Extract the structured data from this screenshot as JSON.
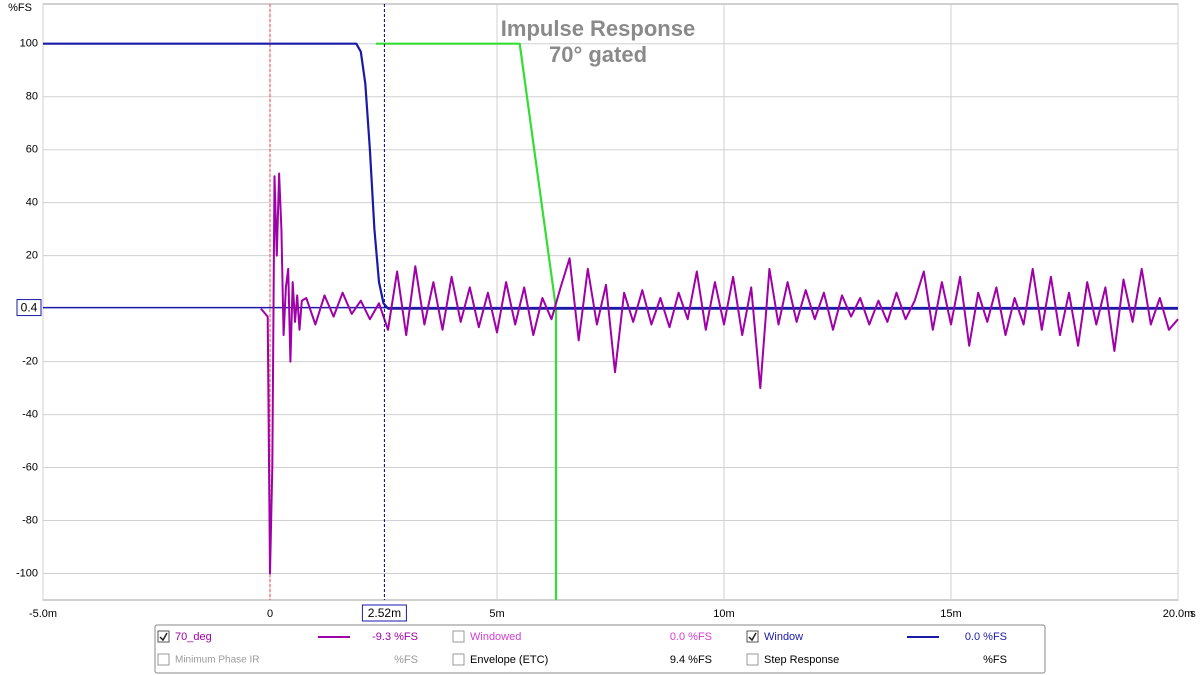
{
  "chart_data": {
    "type": "line",
    "title": "Impulse Response",
    "subtitle": "70° gated",
    "ylabel": "%FS",
    "xlabel": "s",
    "xlim": [
      -5,
      20
    ],
    "ylim": [
      -110,
      115
    ],
    "xticks": [
      {
        "value": -5,
        "label": "-5.0m"
      },
      0,
      {
        "value": 5,
        "label": "5m"
      },
      {
        "value": 10,
        "label": "10m"
      },
      {
        "value": 15,
        "label": "15m"
      },
      {
        "value": 20,
        "label": "20.0m"
      }
    ],
    "yticks": [
      -100,
      -80,
      -60,
      -40,
      -20,
      20,
      40,
      60,
      80,
      100
    ],
    "grid": true,
    "reference_x": 0,
    "x_cursor": {
      "value": 2.52,
      "label": "2.52m"
    },
    "y_cursor": {
      "value": 0.4,
      "label": "0.4"
    },
    "series": [
      {
        "name": "70_deg",
        "color": "#a000a8",
        "checked": true,
        "readout": "-9.3 %FS",
        "x": [
          -0.2,
          -0.05,
          0,
          0.05,
          0.1,
          0.15,
          0.2,
          0.25,
          0.3,
          0.35,
          0.4,
          0.45,
          0.5,
          0.55,
          0.6,
          0.65,
          0.7,
          0.8,
          1.0,
          1.2,
          1.4,
          1.6,
          1.8,
          2.0,
          2.2,
          2.4,
          2.6,
          2.8,
          3.0,
          3.2,
          3.4,
          3.6,
          3.8,
          4.0,
          4.2,
          4.4,
          4.6,
          4.8,
          5.0,
          5.2,
          5.4,
          5.6,
          5.8,
          6.0,
          6.2,
          6.4,
          6.6,
          6.8,
          7.0,
          7.2,
          7.4,
          7.6,
          7.8,
          8.0,
          8.2,
          8.4,
          8.6,
          8.8,
          9.0,
          9.2,
          9.4,
          9.6,
          9.8,
          10.0,
          10.2,
          10.4,
          10.6,
          10.8,
          11.0,
          11.2,
          11.4,
          11.6,
          11.8,
          12.0,
          12.2,
          12.4,
          12.6,
          12.8,
          13.0,
          13.2,
          13.4,
          13.6,
          13.8,
          14.0,
          14.2,
          14.4,
          14.6,
          14.8,
          15.0,
          15.2,
          15.4,
          15.6,
          15.8,
          16.0,
          16.2,
          16.4,
          16.6,
          16.8,
          17.0,
          17.2,
          17.4,
          17.6,
          17.8,
          18.0,
          18.2,
          18.4,
          18.6,
          18.8,
          19.0,
          19.2,
          19.4,
          19.6,
          19.8,
          20.0
        ],
        "values": [
          0,
          -3,
          -100,
          -60,
          50,
          20,
          51,
          30,
          -10,
          8,
          15,
          -20,
          10,
          -5,
          5,
          -8,
          3,
          4,
          -6,
          5,
          -3,
          6,
          -2,
          3,
          -4,
          2,
          -8,
          14,
          -10,
          16,
          -6,
          10,
          -8,
          12,
          -5,
          8,
          -7,
          6,
          -9,
          10,
          -6,
          8,
          -10,
          4,
          -4,
          8,
          19,
          -12,
          15,
          -6,
          9,
          -24,
          6,
          -5,
          7,
          -6,
          4,
          -7,
          6,
          -4,
          14,
          -8,
          10,
          -6,
          12,
          -10,
          8,
          -30,
          15,
          -6,
          10,
          -5,
          7,
          -4,
          6,
          -8,
          5,
          -3,
          4,
          -6,
          3,
          -5,
          6,
          -4,
          3,
          14,
          -8,
          10,
          -6,
          12,
          -14,
          6,
          -5,
          8,
          -10,
          4,
          -6,
          15,
          -8,
          12,
          -10,
          6,
          -14,
          10,
          -6,
          8,
          -16,
          11,
          -5,
          15,
          -6,
          4,
          -8,
          -4
        ]
      },
      {
        "name": "Window",
        "color": "#1a1aa8",
        "checked": true,
        "readout": "0.0 %FS",
        "x": [
          -5,
          1.9,
          2.0,
          2.1,
          2.2,
          2.3,
          2.4,
          2.5,
          2.6,
          20
        ],
        "values": [
          100,
          100,
          97,
          85,
          60,
          30,
          10,
          2,
          0,
          0
        ]
      },
      {
        "color": "#33dd33",
        "x": [
          2.33,
          5.5,
          6.3,
          6.3
        ],
        "values": [
          100,
          100,
          0,
          -110
        ]
      }
    ],
    "legend_others": [
      {
        "label": "Windowed",
        "color": "#d040d0",
        "checked": false,
        "readout": "0.0 %FS"
      },
      {
        "label": "Minimum Phase IR",
        "color": "#9a9a9a",
        "checked": false,
        "readout": "%FS"
      },
      {
        "label": "Envelope (ETC)",
        "color": "#000000",
        "checked": false,
        "readout": "9.4 %FS"
      },
      {
        "label": "Step Response",
        "color": "#000000",
        "checked": false,
        "readout": "%FS"
      }
    ]
  }
}
